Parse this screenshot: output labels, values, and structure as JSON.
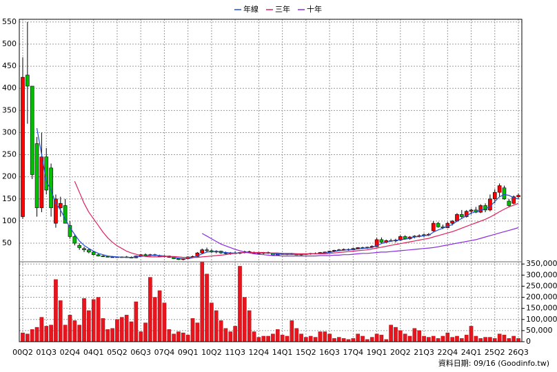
{
  "chart_data": [
    {
      "type": "candlestick",
      "categories": [
        "00Q2",
        null,
        null,
        null,
        null,
        "01Q3",
        null,
        null,
        null,
        null,
        "02Q4",
        null,
        null,
        null,
        null,
        "04Q1",
        null,
        null,
        null,
        null,
        "05Q2",
        null,
        null,
        null,
        null,
        "06Q3",
        null,
        null,
        null,
        null,
        "07Q4",
        null,
        null,
        null,
        null,
        "09Q1",
        null,
        null,
        null,
        null,
        "10Q2",
        null,
        null,
        null,
        null,
        "11Q3",
        null,
        null,
        null,
        null,
        "12Q4",
        null,
        null,
        null,
        null,
        "14Q1",
        null,
        null,
        null,
        null,
        "15Q2",
        null,
        null,
        null,
        null,
        "16Q3",
        null,
        null,
        null,
        null,
        "17Q4",
        null,
        null,
        null,
        null,
        "19Q1",
        null,
        null,
        null,
        null,
        "20Q2",
        null,
        null,
        null,
        null,
        "21Q3",
        null,
        null,
        null,
        null,
        "22Q4",
        null,
        null,
        null,
        null,
        "24Q1",
        null,
        null,
        null,
        null,
        "25Q2",
        null,
        null,
        null,
        null,
        "26Q3"
      ],
      "open": [
        110,
        430,
        405,
        275,
        130,
        245,
        220,
        95,
        130,
        135,
        90,
        65,
        45,
        38,
        35,
        30,
        24,
        21,
        20,
        19,
        19,
        18,
        19,
        18,
        17,
        21,
        24,
        22,
        24,
        22,
        20,
        21,
        18,
        15,
        13,
        15,
        19,
        20,
        28,
        35,
        33,
        30,
        32,
        28,
        27,
        28,
        27,
        29,
        31,
        29,
        28,
        27,
        29,
        27,
        23,
        26,
        25,
        26,
        25,
        24,
        25,
        26,
        27,
        26,
        29,
        30,
        32,
        34,
        35,
        36,
        35,
        38,
        40,
        39,
        41,
        42,
        58,
        52,
        56,
        55,
        57,
        65,
        60,
        64,
        66,
        67,
        69,
        78,
        95,
        87,
        85,
        95,
        100,
        115,
        110,
        122,
        125,
        120,
        135,
        125,
        150,
        165,
        175,
        145,
        140,
        155
      ],
      "high": [
        470,
        550,
        405,
        290,
        300,
        265,
        230,
        160,
        155,
        150,
        100,
        70,
        50,
        42,
        38,
        32,
        26,
        23,
        22,
        21,
        20,
        20,
        21,
        20,
        22,
        25,
        27,
        26,
        26,
        24,
        23,
        22,
        20,
        17,
        16,
        20,
        22,
        30,
        38,
        40,
        36,
        34,
        33,
        31,
        30,
        31,
        30,
        33,
        33,
        31,
        30,
        30,
        31,
        28,
        27,
        28,
        27,
        28,
        27,
        26,
        27,
        28,
        29,
        30,
        31,
        33,
        35,
        37,
        38,
        38,
        40,
        41,
        42,
        42,
        45,
        62,
        63,
        58,
        60,
        60,
        68,
        68,
        66,
        68,
        70,
        72,
        73,
        100,
        98,
        92,
        98,
        102,
        118,
        125,
        125,
        128,
        132,
        138,
        140,
        160,
        172,
        185,
        180,
        150,
        158,
        162
      ],
      "low": [
        105,
        320,
        195,
        110,
        120,
        160,
        110,
        85,
        110,
        95,
        60,
        45,
        35,
        30,
        27,
        22,
        20,
        19,
        18,
        18,
        17,
        17,
        17,
        16,
        16,
        20,
        21,
        20,
        21,
        19,
        18,
        17,
        14,
        12,
        11,
        14,
        17,
        19,
        26,
        30,
        28,
        27,
        26,
        25,
        24,
        26,
        25,
        27,
        28,
        26,
        25,
        25,
        26,
        22,
        22,
        24,
        23,
        24,
        23,
        22,
        23,
        24,
        25,
        25,
        27,
        28,
        30,
        32,
        33,
        33,
        34,
        36,
        37,
        37,
        39,
        41,
        50,
        50,
        53,
        52,
        55,
        58,
        58,
        61,
        63,
        64,
        66,
        76,
        85,
        82,
        84,
        90,
        98,
        105,
        108,
        115,
        118,
        118,
        120,
        122,
        140,
        155,
        148,
        132,
        138,
        150
      ],
      "close": [
        425,
        405,
        205,
        130,
        245,
        170,
        130,
        150,
        140,
        95,
        65,
        50,
        40,
        35,
        30,
        24,
        21,
        20,
        19,
        19,
        18,
        19,
        18,
        17,
        21,
        24,
        22,
        24,
        22,
        20,
        21,
        18,
        15,
        13,
        15,
        19,
        20,
        28,
        35,
        33,
        30,
        32,
        28,
        27,
        28,
        27,
        29,
        31,
        29,
        28,
        27,
        29,
        27,
        23,
        26,
        25,
        26,
        25,
        24,
        25,
        26,
        27,
        26,
        29,
        30,
        32,
        34,
        35,
        36,
        35,
        38,
        40,
        39,
        41,
        43,
        58,
        52,
        56,
        55,
        57,
        65,
        60,
        64,
        66,
        67,
        69,
        70,
        95,
        87,
        85,
        95,
        100,
        115,
        110,
        122,
        125,
        120,
        135,
        125,
        150,
        165,
        180,
        150,
        135,
        155,
        158
      ],
      "up_color": "#ff0000",
      "down_color": "#00c000",
      "lines": [
        {
          "name": "年線",
          "color": "#1f4fd8",
          "values": [
            null,
            null,
            null,
            310,
            250,
            190,
            170,
            140,
            125,
            105,
            85,
            70,
            55,
            45,
            38,
            32,
            27,
            24,
            21,
            20,
            19,
            18.5,
            18,
            18,
            19,
            20,
            21,
            22,
            23,
            22,
            21,
            20,
            18,
            16,
            15,
            15,
            17,
            21,
            26,
            30,
            31,
            31,
            30,
            29,
            28,
            28,
            28,
            29,
            29,
            29,
            28,
            28,
            28,
            27,
            26,
            25,
            25,
            25,
            25,
            25,
            25,
            26,
            26,
            27,
            28,
            29,
            31,
            33,
            34,
            35,
            36,
            37,
            38,
            39,
            40,
            45,
            49,
            52,
            55,
            56,
            58,
            59,
            61,
            64,
            65,
            67,
            68,
            75,
            80,
            84,
            88,
            92,
            100,
            106,
            112,
            118,
            121,
            125,
            127,
            133,
            144,
            155,
            160,
            158,
            153,
            150
          ]
        },
        {
          "name": "三年",
          "color": "#e0205a",
          "values": [
            null,
            null,
            null,
            null,
            null,
            null,
            null,
            null,
            null,
            null,
            null,
            190,
            165,
            140,
            120,
            105,
            90,
            75,
            62,
            52,
            44,
            38,
            32,
            28,
            25,
            22,
            20,
            19,
            19,
            19,
            20,
            20,
            20,
            19,
            18,
            18,
            18,
            18,
            19,
            20,
            21,
            22,
            23,
            24,
            26,
            27,
            28,
            29,
            29,
            29,
            29,
            29,
            28,
            28,
            28,
            27,
            27,
            27,
            26,
            26,
            26,
            26,
            26,
            26,
            26,
            27,
            28,
            29,
            30,
            31,
            32,
            33,
            34,
            35,
            37,
            39,
            41,
            43,
            45,
            47,
            49,
            51,
            53,
            55,
            57,
            59,
            61,
            64,
            67,
            70,
            73,
            76,
            80,
            84,
            88,
            92,
            96,
            100,
            104,
            109,
            115,
            121,
            127,
            132,
            136,
            140
          ]
        },
        {
          "name": "十年",
          "color": "#8a2be2",
          "values": [
            null,
            null,
            null,
            null,
            null,
            null,
            null,
            null,
            null,
            null,
            null,
            null,
            null,
            null,
            null,
            null,
            null,
            null,
            null,
            null,
            null,
            null,
            null,
            null,
            null,
            null,
            null,
            null,
            null,
            null,
            null,
            null,
            null,
            null,
            null,
            null,
            null,
            null,
            72,
            66,
            60,
            54,
            48,
            44,
            40,
            36,
            33,
            30,
            28,
            26,
            25,
            24,
            23,
            22,
            22,
            21,
            21,
            21,
            21,
            21,
            21,
            21,
            21,
            22,
            22,
            22,
            23,
            23,
            24,
            24,
            25,
            26,
            27,
            27,
            28,
            29,
            30,
            30,
            31,
            32,
            33,
            34,
            35,
            36,
            37,
            38,
            39,
            40,
            42,
            44,
            46,
            48,
            50,
            52,
            54,
            56,
            58,
            61,
            64,
            67,
            70,
            73,
            76,
            79,
            82,
            85
          ]
        }
      ],
      "ylim": [
        8,
        556
      ],
      "yticks": [
        50,
        100,
        150,
        200,
        250,
        300,
        350,
        400,
        450,
        500,
        550
      ],
      "grid": true
    },
    {
      "type": "bar",
      "color": "#e8141e",
      "values": [
        40000,
        35000,
        55000,
        65000,
        110000,
        70000,
        75000,
        280000,
        185000,
        75000,
        120000,
        95000,
        75000,
        195000,
        140000,
        190000,
        200000,
        105000,
        55000,
        60000,
        100000,
        110000,
        120000,
        90000,
        180000,
        45000,
        85000,
        290000,
        200000,
        230000,
        175000,
        55000,
        35000,
        45000,
        40000,
        30000,
        105000,
        85000,
        360000,
        305000,
        175000,
        140000,
        95000,
        60000,
        45000,
        70000,
        340000,
        200000,
        140000,
        45000,
        20000,
        25000,
        25000,
        35000,
        55000,
        30000,
        25000,
        95000,
        60000,
        35000,
        20000,
        25000,
        20000,
        45000,
        45000,
        35000,
        15000,
        20000,
        15000,
        10000,
        15000,
        35000,
        25000,
        10000,
        20000,
        35000,
        30000,
        10000,
        75000,
        65000,
        50000,
        35000,
        25000,
        60000,
        50000,
        25000,
        20000,
        25000,
        15000,
        25000,
        40000,
        20000,
        25000,
        15000,
        30000,
        70000,
        25000,
        15000,
        20000,
        20000,
        15000,
        35000,
        30000,
        15000,
        25000,
        15000
      ],
      "ylim": [
        0,
        360000
      ],
      "yticks": [
        {
          "value": 0,
          "label": "0"
        },
        {
          "value": 50000,
          "label": "50,000"
        },
        {
          "value": 100000,
          "label": "100,000"
        },
        {
          "value": 150000,
          "label": "150,000"
        },
        {
          "value": 200000,
          "label": "200,000"
        },
        {
          "value": 250000,
          "label": "250,000"
        },
        {
          "value": 300000,
          "label": "300,000"
        },
        {
          "value": 350000,
          "label": "350,000"
        }
      ],
      "grid": true
    }
  ],
  "footer": "資料日期: 09/16 (Goodinfo.tw)"
}
